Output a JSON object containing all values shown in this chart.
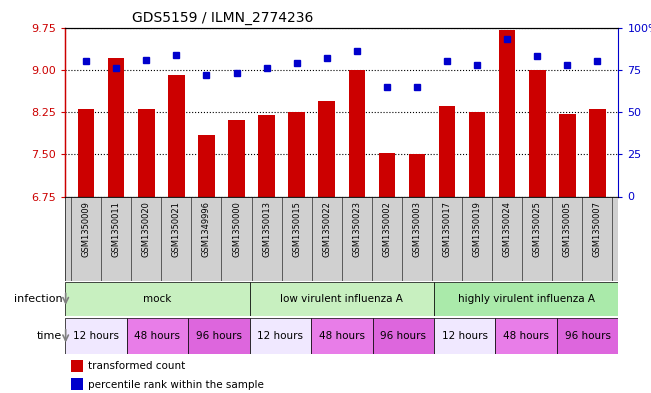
{
  "title": "GDS5159 / ILMN_2774236",
  "samples": [
    "GSM1350009",
    "GSM1350011",
    "GSM1350020",
    "GSM1350021",
    "GSM1349996",
    "GSM1350000",
    "GSM1350013",
    "GSM1350015",
    "GSM1350022",
    "GSM1350023",
    "GSM1350002",
    "GSM1350003",
    "GSM1350017",
    "GSM1350019",
    "GSM1350024",
    "GSM1350025",
    "GSM1350005",
    "GSM1350007"
  ],
  "bar_values": [
    8.3,
    9.2,
    8.3,
    8.9,
    7.85,
    8.1,
    8.2,
    8.25,
    8.45,
    9.0,
    7.52,
    7.5,
    8.35,
    8.25,
    9.7,
    9.0,
    8.22,
    8.3
  ],
  "dot_values": [
    80,
    76,
    81,
    84,
    72,
    73,
    76,
    79,
    82,
    86,
    65,
    65,
    80,
    78,
    93,
    83,
    78,
    80
  ],
  "ylim_left": [
    6.75,
    9.75
  ],
  "ylim_right": [
    0,
    100
  ],
  "yticks_left": [
    6.75,
    7.5,
    8.25,
    9.0,
    9.75
  ],
  "yticks_right": [
    0,
    25,
    50,
    75,
    100
  ],
  "bar_color": "#cc0000",
  "dot_color": "#0000cc",
  "grid_color": "#000000",
  "inf_groups": [
    {
      "label": "mock",
      "start": 0,
      "end": 6,
      "color": "#c8f0c0"
    },
    {
      "label": "low virulent influenza A",
      "start": 6,
      "end": 12,
      "color": "#c8f0c0"
    },
    {
      "label": "highly virulent influenza A",
      "start": 12,
      "end": 18,
      "color": "#aaeaaa"
    }
  ],
  "time_groups": [
    {
      "label": "12 hours",
      "start": 0,
      "end": 2,
      "color": "#f0e8ff"
    },
    {
      "label": "48 hours",
      "start": 2,
      "end": 4,
      "color": "#e87de8"
    },
    {
      "label": "96 hours",
      "start": 4,
      "end": 6,
      "color": "#dd66dd"
    },
    {
      "label": "12 hours",
      "start": 6,
      "end": 8,
      "color": "#f0e8ff"
    },
    {
      "label": "48 hours",
      "start": 8,
      "end": 10,
      "color": "#e87de8"
    },
    {
      "label": "96 hours",
      "start": 10,
      "end": 12,
      "color": "#dd66dd"
    },
    {
      "label": "12 hours",
      "start": 12,
      "end": 14,
      "color": "#f0e8ff"
    },
    {
      "label": "48 hours",
      "start": 14,
      "end": 16,
      "color": "#e87de8"
    },
    {
      "label": "96 hours",
      "start": 16,
      "end": 18,
      "color": "#dd66dd"
    }
  ],
  "legend_items": [
    {
      "label": "transformed count",
      "color": "#cc0000"
    },
    {
      "label": "percentile rank within the sample",
      "color": "#0000cc"
    }
  ],
  "infection_label": "infection",
  "time_label": "time",
  "left_ylabel_color": "#cc0000",
  "right_ylabel_color": "#0000cc",
  "label_color": "#808080",
  "sample_box_color": "#d0d0d0"
}
